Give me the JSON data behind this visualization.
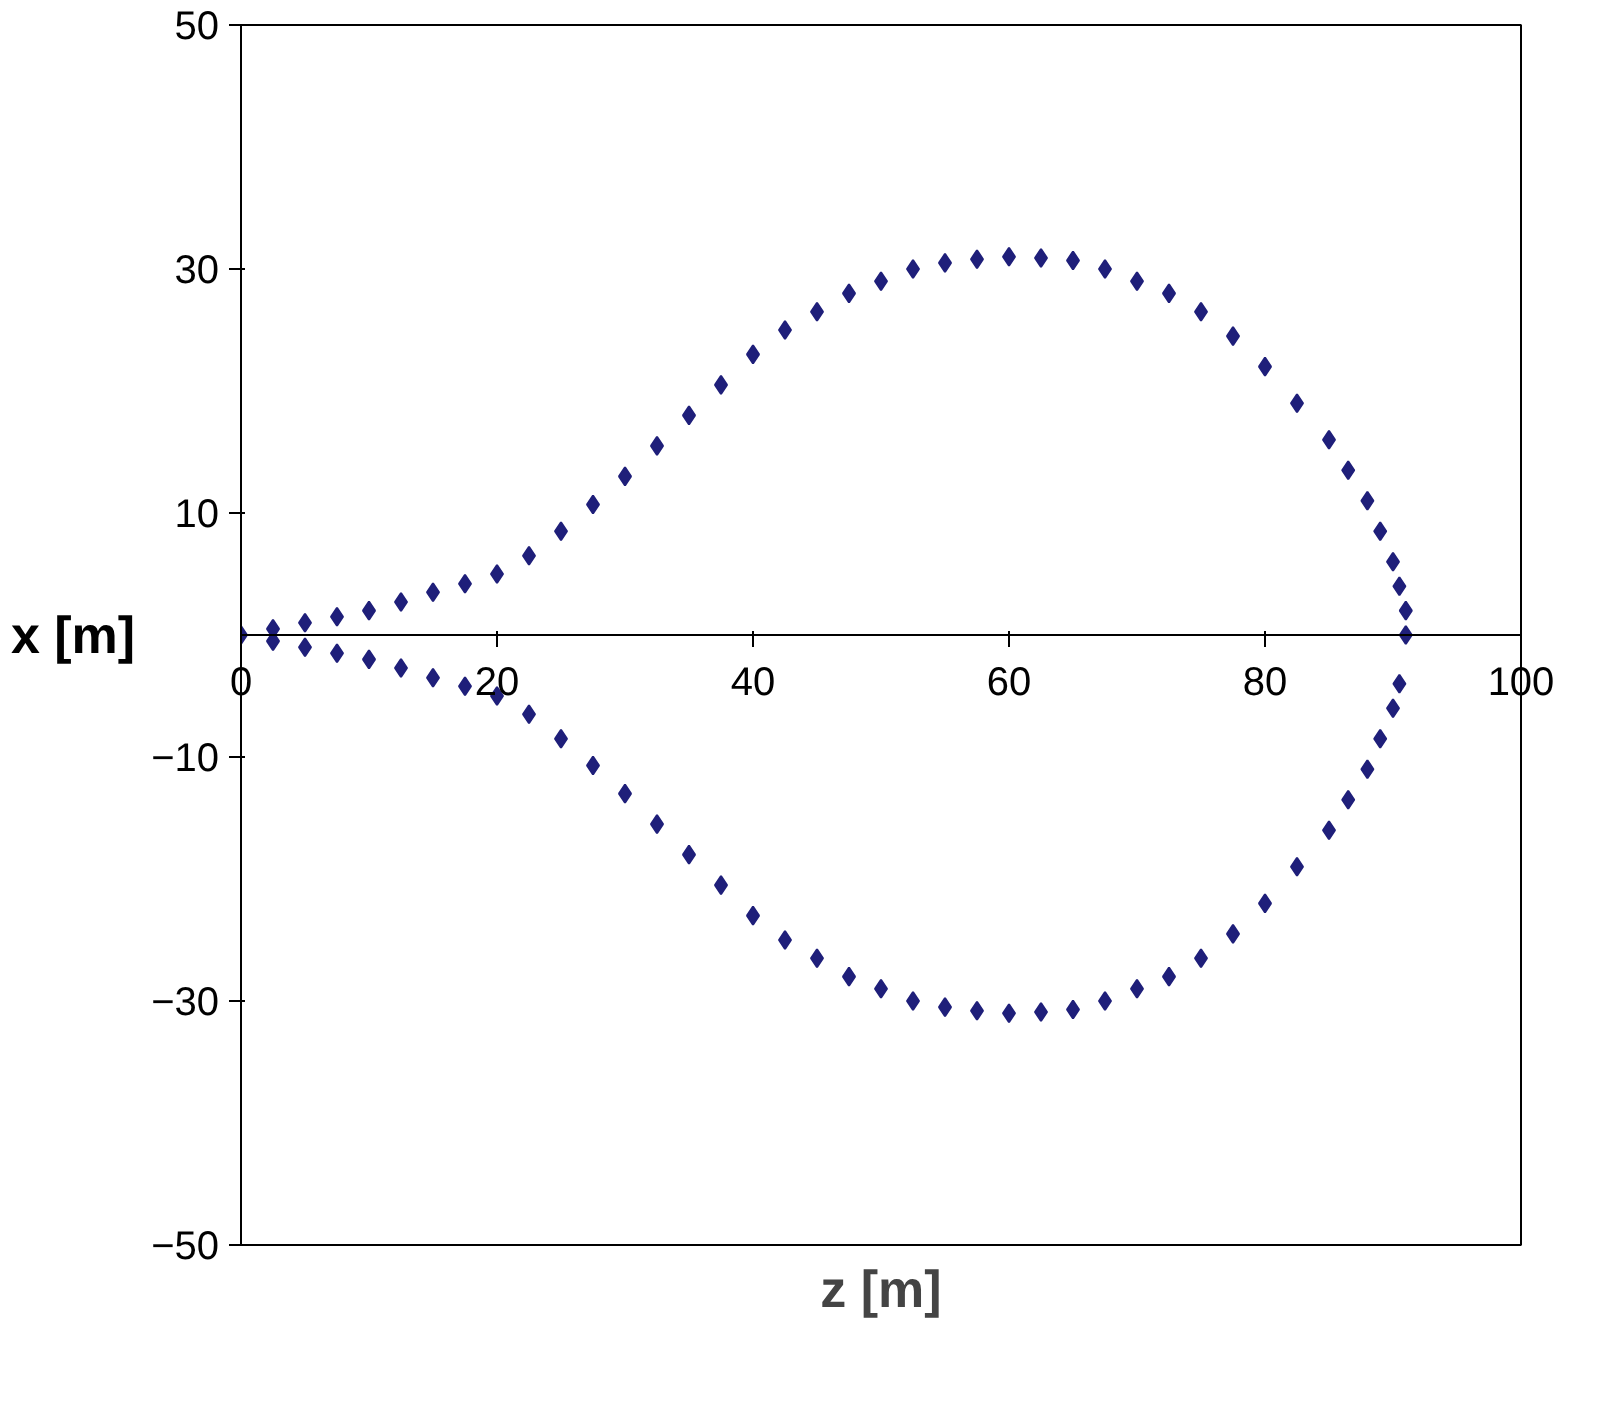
{
  "chart_data": {
    "type": "scatter",
    "xlabel": "z [m]",
    "ylabel": "x [m]",
    "marker": "diamond",
    "xlim": [
      0,
      100
    ],
    "ylim": [
      -50,
      50
    ],
    "xticks": [
      0,
      20,
      40,
      60,
      80,
      100
    ],
    "yticks": [
      -50,
      -30,
      -10,
      10,
      30,
      50
    ],
    "series": [
      {
        "color": "#1f1f7a",
        "x": [
          0,
          2.5,
          5,
          7.5,
          10,
          12.5,
          15,
          17.5,
          20,
          22.5,
          25,
          27.5,
          30,
          32.5,
          35,
          37.5,
          40,
          42.5,
          45,
          47.5,
          50,
          52.5,
          55,
          57.5,
          60,
          62.5,
          65,
          67.5,
          70,
          72.5,
          75,
          77.5,
          80,
          82.5,
          85,
          86.5,
          88,
          89,
          90,
          90.5,
          91,
          91,
          90.5,
          90,
          89,
          88,
          86.5,
          85,
          82.5,
          80,
          77.5,
          75,
          72.5,
          70,
          67.5,
          65,
          62.5,
          60,
          57.5,
          55,
          52.5,
          50,
          47.5,
          45,
          42.5,
          40,
          37.5,
          35,
          32.5,
          30,
          27.5,
          25,
          22.5,
          20,
          17.5,
          15,
          12.5,
          10,
          7.5,
          5,
          2.5
        ],
        "values": [
          0,
          0.5,
          1,
          1.5,
          2,
          2.7,
          3.5,
          4.2,
          5,
          6.5,
          8.5,
          10.7,
          13,
          15.5,
          18,
          20.5,
          23,
          25,
          26.5,
          28,
          29,
          30,
          30.5,
          30.8,
          31,
          30.9,
          30.7,
          30,
          29,
          28,
          26.5,
          24.5,
          22,
          19,
          16,
          13.5,
          11,
          8.5,
          6,
          4,
          2,
          0,
          -4,
          -6,
          -8.5,
          -11,
          -13.5,
          -16,
          -19,
          -22,
          -24.5,
          -26.5,
          -28,
          -29,
          -30,
          -30.7,
          -30.9,
          -31,
          -30.8,
          -30.5,
          -30,
          -29,
          -28,
          -26.5,
          -25,
          -23,
          -20.5,
          -18,
          -15.5,
          -13,
          -10.7,
          -8.5,
          -6.5,
          -5,
          -4.2,
          -3.5,
          -2.7,
          -2,
          -1.5,
          -1,
          -0.5
        ]
      }
    ]
  }
}
